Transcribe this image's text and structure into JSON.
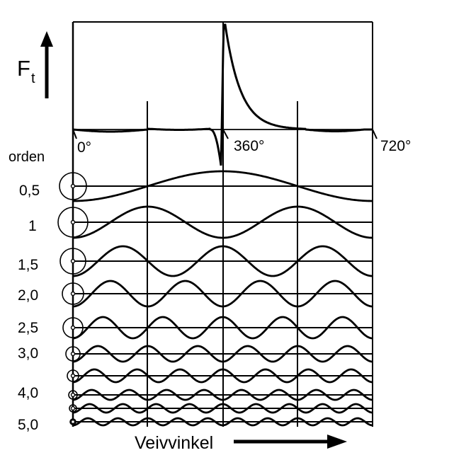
{
  "force_label": {
    "main": "F",
    "subscript": "t"
  },
  "angle_ticks": [
    "0°",
    "360°",
    "720°"
  ],
  "order_header": "orden",
  "order_labels": [
    "0,5",
    "1",
    "1,5",
    "2,0",
    "2,5",
    "3,0",
    "4,0",
    "5,0"
  ],
  "x_axis_label": "Veivvinkel",
  "harmonic_orders": [
    0.5,
    1,
    1.5,
    2.0,
    2.5,
    3.0,
    3.5,
    4.0,
    4.5,
    5.0
  ],
  "ink_color": "#000000"
}
